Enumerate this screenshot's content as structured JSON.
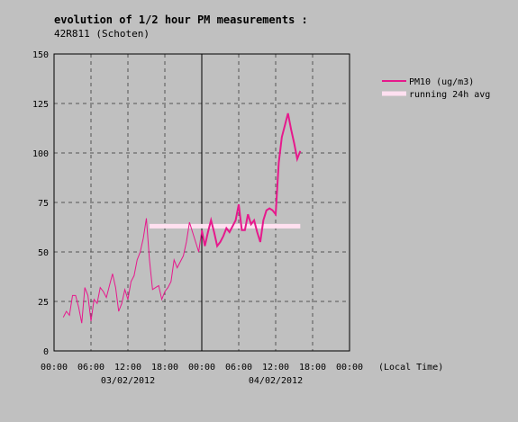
{
  "chart_data": {
    "type": "line",
    "title": "evolution of 1/2 hour PM measurements :",
    "subtitle": "42R811 (Schoten)",
    "y_ticks": [
      "0",
      "25",
      "50",
      "75",
      "100",
      "125",
      "150"
    ],
    "ylim": [
      0,
      150
    ],
    "x_ticks": [
      "00:00",
      "06:00",
      "12:00",
      "18:00",
      "00:00",
      "06:00",
      "12:00",
      "18:00",
      "00:00"
    ],
    "x_unit_label": "(Local Time)",
    "date_labels": [
      {
        "label": "03/02/2012",
        "hour": 12
      },
      {
        "label": "04/02/2012",
        "hour": 36
      }
    ],
    "xlim_hours": [
      0,
      48
    ],
    "grid": true,
    "legend_position": "top-right",
    "series": [
      {
        "name": "PM10 (ug/m3)",
        "color": "#e6198c",
        "points": [
          [
            1.5,
            17
          ],
          [
            2.0,
            20
          ],
          [
            2.5,
            18
          ],
          [
            3.0,
            28
          ],
          [
            3.5,
            28
          ],
          [
            4.0,
            22
          ],
          [
            4.5,
            14
          ],
          [
            5.0,
            32
          ],
          [
            5.5,
            28
          ],
          [
            6.0,
            15
          ],
          [
            6.5,
            26
          ],
          [
            7.0,
            24
          ],
          [
            7.5,
            32
          ],
          [
            8.0,
            30
          ],
          [
            8.5,
            27
          ],
          [
            9.0,
            33
          ],
          [
            9.5,
            39
          ],
          [
            10.0,
            32
          ],
          [
            10.5,
            20
          ],
          [
            11.0,
            24
          ],
          [
            11.5,
            31
          ],
          [
            12.0,
            26
          ],
          [
            12.5,
            35
          ],
          [
            13.0,
            38
          ],
          [
            13.5,
            46
          ],
          [
            14.0,
            50
          ],
          [
            14.5,
            57
          ],
          [
            15.0,
            67
          ],
          [
            15.5,
            46
          ],
          [
            16.0,
            31
          ],
          [
            16.5,
            32
          ],
          [
            17.0,
            33
          ],
          [
            17.5,
            26
          ],
          [
            18.0,
            30
          ],
          [
            18.5,
            32
          ],
          [
            19.0,
            35
          ],
          [
            19.5,
            46
          ],
          [
            20.0,
            42
          ],
          [
            20.5,
            45
          ],
          [
            21.0,
            48
          ],
          [
            21.5,
            55
          ],
          [
            22.0,
            65
          ],
          [
            22.5,
            60
          ],
          [
            23.0,
            55
          ],
          [
            23.5,
            50
          ],
          [
            24.0,
            61
          ],
          [
            24.5,
            53
          ],
          [
            25.0,
            60
          ],
          [
            25.5,
            66
          ],
          [
            26.0,
            60
          ],
          [
            26.5,
            53
          ],
          [
            27.0,
            55
          ],
          [
            27.5,
            58
          ],
          [
            28.0,
            62
          ],
          [
            28.5,
            60
          ],
          [
            29.0,
            63
          ],
          [
            29.5,
            66
          ],
          [
            30.0,
            74
          ],
          [
            30.5,
            61
          ],
          [
            31.0,
            61
          ],
          [
            31.5,
            69
          ],
          [
            32.0,
            64
          ],
          [
            32.5,
            66
          ],
          [
            33.0,
            60
          ],
          [
            33.5,
            55
          ],
          [
            34.0,
            66
          ],
          [
            34.5,
            71
          ],
          [
            35.0,
            72
          ],
          [
            35.5,
            71
          ],
          [
            36.0,
            69
          ],
          [
            36.5,
            95
          ],
          [
            37.0,
            108
          ],
          [
            37.5,
            114
          ],
          [
            38.0,
            120
          ],
          [
            38.5,
            112
          ],
          [
            39.0,
            105
          ],
          [
            39.5,
            97
          ],
          [
            40.0,
            101
          ]
        ]
      },
      {
        "name": "running 24h avg",
        "color": "#ffe0f0",
        "points": [
          [
            15.5,
            63
          ],
          [
            40.0,
            63
          ]
        ]
      }
    ]
  }
}
